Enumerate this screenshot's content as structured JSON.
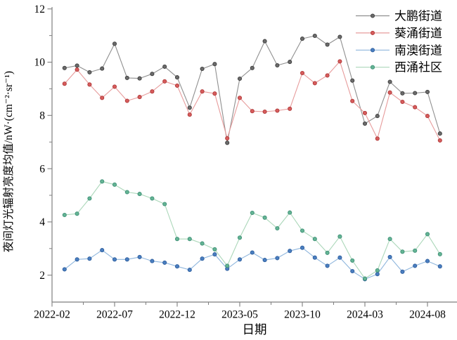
{
  "chart_data": {
    "type": "line",
    "title": "",
    "xlabel": "日期",
    "ylabel": "夜间灯光辐射亮度均值/nW·(cm⁻²·sr⁻¹)",
    "grid": false,
    "legend_position": "top-right",
    "x_axis": {
      "origin_label": "2022-02",
      "major_tick_labels": [
        "2022-02",
        "2022-07",
        "2022-12",
        "2023-05",
        "2023-10",
        "2024-03",
        "2024-08"
      ],
      "major_month_offsets": [
        0,
        5,
        10,
        15,
        20,
        25,
        30
      ],
      "minor_month_offsets": [
        2.5,
        7.5,
        12.5,
        17.5,
        22.5,
        27.5
      ],
      "months_span": 32.4
    },
    "y_axis": {
      "lim": [
        1,
        12.07
      ],
      "major_ticks": [
        2,
        4,
        6,
        8,
        10,
        12
      ],
      "minor_ticks": [
        3,
        5,
        7,
        9,
        11
      ]
    },
    "x_months": [
      "2022-03",
      "2022-04",
      "2022-05",
      "2022-06",
      "2022-07",
      "2022-08",
      "2022-09",
      "2022-10",
      "2022-11",
      "2022-12",
      "2023-01",
      "2023-02",
      "2023-03",
      "2023-04",
      "2023-05",
      "2023-06",
      "2023-07",
      "2023-08",
      "2023-09",
      "2023-10",
      "2023-11",
      "2023-12",
      "2024-01",
      "2024-02",
      "2024-03",
      "2024-04",
      "2024-05",
      "2024-06",
      "2024-07",
      "2024-08",
      "2024-09"
    ],
    "series": [
      {
        "id": "dapeng",
        "name": "大鹏街道",
        "line_color": "#8f8f8f",
        "marker_color": "#6b6b6b",
        "marker_edge_color": "#3f3f3f",
        "values": [
          9.78,
          9.87,
          9.62,
          9.76,
          10.69,
          9.41,
          9.39,
          9.56,
          9.83,
          9.43,
          8.29,
          9.75,
          9.93,
          6.97,
          9.38,
          9.78,
          10.79,
          9.88,
          10.01,
          10.88,
          10.99,
          10.66,
          10.95,
          9.31,
          7.69,
          7.98,
          9.26,
          8.83,
          8.84,
          8.88,
          7.32
        ]
      },
      {
        "id": "kuiyong",
        "name": "葵涌街道",
        "line_color": "#e79c9c",
        "marker_color": "#d65c5c",
        "marker_edge_color": "#b03a3a",
        "values": [
          9.19,
          9.72,
          9.16,
          8.66,
          9.08,
          8.55,
          8.69,
          8.9,
          9.28,
          9.12,
          8.03,
          8.9,
          8.82,
          7.14,
          8.66,
          8.16,
          8.14,
          8.18,
          8.25,
          9.59,
          9.21,
          9.5,
          10.03,
          8.54,
          8.09,
          7.13,
          8.86,
          8.51,
          8.31,
          7.98,
          7.06
        ]
      },
      {
        "id": "nanao",
        "name": "南澳街道",
        "line_color": "#8fb6dd",
        "marker_color": "#4a7ec0",
        "marker_edge_color": "#2f5f9e",
        "values": [
          2.22,
          2.59,
          2.62,
          2.94,
          2.59,
          2.59,
          2.68,
          2.53,
          2.47,
          2.33,
          2.2,
          2.62,
          2.78,
          2.24,
          2.59,
          2.85,
          2.57,
          2.64,
          2.91,
          3.03,
          2.66,
          2.35,
          2.66,
          2.15,
          1.85,
          2.04,
          2.68,
          2.13,
          2.35,
          2.53,
          2.33
        ]
      },
      {
        "id": "xichong",
        "name": "西涌社区",
        "line_color": "#abd7b9",
        "marker_color": "#64b494",
        "marker_edge_color": "#3f9077",
        "values": [
          4.26,
          4.31,
          4.88,
          5.52,
          5.4,
          5.12,
          5.05,
          4.88,
          4.67,
          3.36,
          3.36,
          3.19,
          2.97,
          2.35,
          3.41,
          4.34,
          4.16,
          3.76,
          4.35,
          3.67,
          3.36,
          2.84,
          3.45,
          2.55,
          1.87,
          2.18,
          3.36,
          2.88,
          2.92,
          3.54,
          2.79
        ]
      }
    ]
  }
}
